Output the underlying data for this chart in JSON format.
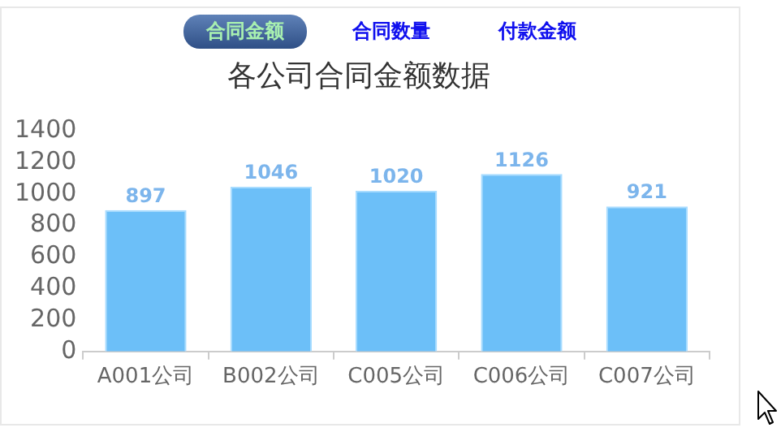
{
  "chart_data": {
    "type": "bar",
    "title": "各公司合同金额数据",
    "categories": [
      "A001公司",
      "B002公司",
      "C005公司",
      "C006公司",
      "C007公司"
    ],
    "values": [
      897,
      1046,
      1020,
      1126,
      921
    ],
    "color": "#6cbff8",
    "ylim": [
      0,
      1400
    ],
    "yticks": [
      0,
      200,
      400,
      600,
      800,
      1000,
      1200,
      1400
    ],
    "data_labels": true,
    "annotations": [
      "合同金额",
      "合同数量",
      "付款金额"
    ]
  }
}
